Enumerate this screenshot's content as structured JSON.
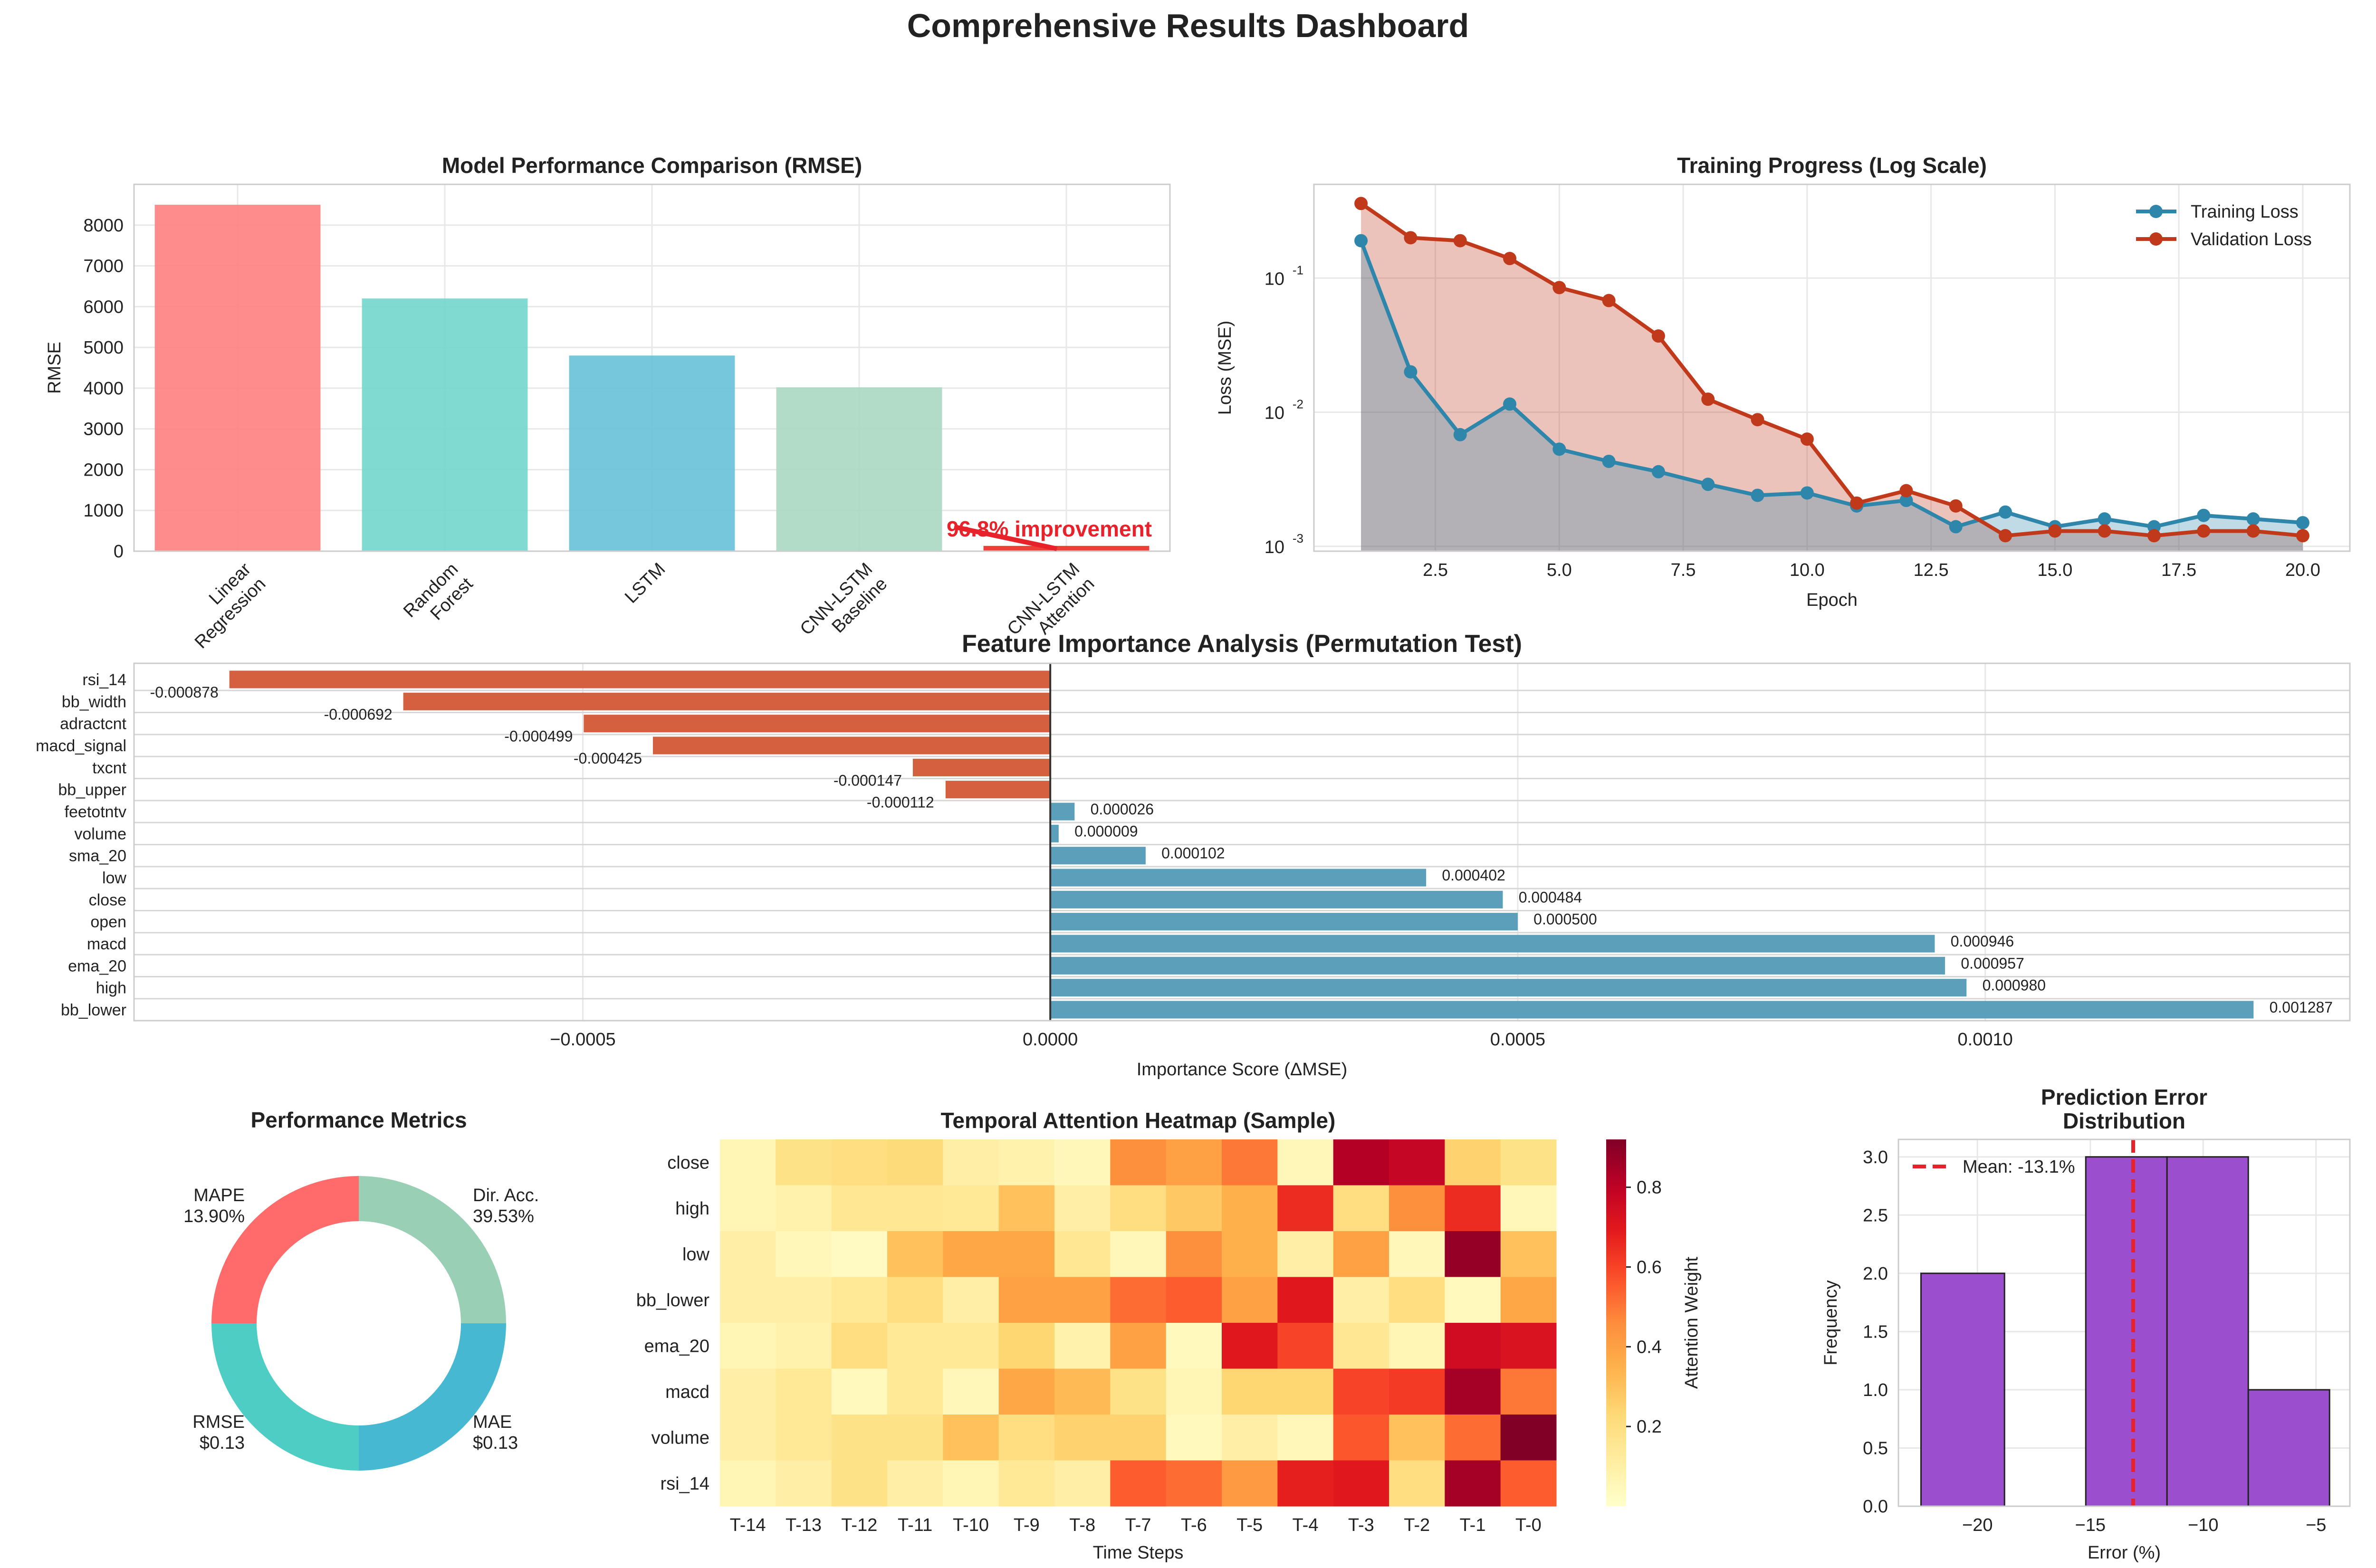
{
  "title": "Comprehensive Results Dashboard",
  "colors": {
    "neg_bar": "#d4603f",
    "pos_bar": "#5b9fba",
    "train": "#2e86ab",
    "val": "#c0391b",
    "hist": "#9b4fcf",
    "mean_line": "#e8222a",
    "grid": "#e8e8e8"
  },
  "chart_data": [
    {
      "id": "rmse",
      "type": "bar",
      "title": "Model Performance Comparison (RMSE)",
      "ylabel": "RMSE",
      "xlabel": "",
      "categories": [
        "Linear\nRegression",
        "Random\nForest",
        "LSTM",
        "CNN-LSTM\nBaseline",
        "CNN-LSTM\nAttention"
      ],
      "values": [
        8500,
        6200,
        4800,
        4020,
        130
      ],
      "bar_colors": [
        "#ff8080",
        "#72d6cc",
        "#67c0d8",
        "#aad8c2",
        "#ee2a22"
      ],
      "ylim": [
        0,
        9000
      ],
      "yticks": [
        0,
        1000,
        2000,
        3000,
        4000,
        5000,
        6000,
        7000,
        8000
      ],
      "annotation": "96.8% improvement",
      "grid": true
    },
    {
      "id": "training",
      "type": "line",
      "title": "Training Progress (Log Scale)",
      "xlabel": "Epoch",
      "ylabel": "Loss (MSE)",
      "yscale": "log",
      "x": [
        1,
        2,
        3,
        4,
        5,
        6,
        7,
        8,
        9,
        10,
        11,
        12,
        13,
        14,
        15,
        16,
        17,
        18,
        19,
        20
      ],
      "series": [
        {
          "name": "Training Loss",
          "values": [
            0.19,
            0.02,
            0.0068,
            0.0115,
            0.0053,
            0.0043,
            0.0036,
            0.0029,
            0.0024,
            0.0025,
            0.002,
            0.0022,
            0.0014,
            0.0018,
            0.0014,
            0.0016,
            0.0014,
            0.0017,
            0.0016,
            0.0015
          ]
        },
        {
          "name": "Validation Loss",
          "values": [
            0.36,
            0.2,
            0.19,
            0.14,
            0.085,
            0.068,
            0.037,
            0.0125,
            0.0088,
            0.0063,
            0.0021,
            0.0026,
            0.002,
            0.0012,
            0.0013,
            0.0013,
            0.0012,
            0.0013,
            0.0013,
            0.0012
          ]
        }
      ],
      "xlim": [
        0.05,
        20.95
      ],
      "ylim": [
        0.00092,
        0.5
      ],
      "xticks": [
        2.5,
        5.0,
        7.5,
        10.0,
        12.5,
        15.0,
        17.5,
        20.0
      ],
      "xtick_labels": [
        "2.5",
        "5.0",
        "7.5",
        "10.0",
        "12.5",
        "15.0",
        "17.5",
        "20.0"
      ],
      "ytick_labels": [
        "10",
        "10",
        "10"
      ],
      "ytick_exponents": [
        "-3",
        "-2",
        "-1"
      ],
      "legend": "top-right",
      "grid": true
    },
    {
      "id": "importance",
      "type": "bar",
      "orientation": "horizontal",
      "title": "Feature Importance Analysis (Permutation Test)",
      "xlabel": "Importance Score (ΔMSE)",
      "categories": [
        "rsi_14",
        "bb_width",
        "adractcnt",
        "macd_signal",
        "txcnt",
        "bb_upper",
        "feetotntv",
        "volume",
        "sma_20",
        "low",
        "close",
        "open",
        "macd",
        "ema_20",
        "high",
        "bb_lower"
      ],
      "values": [
        -0.000878,
        -0.000692,
        -0.000499,
        -0.000425,
        -0.000147,
        -0.000112,
        2.6e-05,
        9e-06,
        0.000102,
        0.000402,
        0.000484,
        0.0005,
        0.000946,
        0.000957,
        0.00098,
        0.001287
      ],
      "value_labels": [
        "-0.000878",
        "-0.000692",
        "-0.000499",
        "-0.000425",
        "-0.000147",
        "-0.000112",
        "0.000026",
        "0.000009",
        "0.000102",
        "0.000402",
        "0.000484",
        "0.000500",
        "0.000946",
        "0.000957",
        "0.000980",
        "0.001287"
      ],
      "xlim": [
        -0.00098,
        0.00139
      ],
      "xticks": [
        -0.0005,
        0,
        0.0005,
        0.001
      ],
      "xtick_labels": [
        "−0.0005",
        "0.0000",
        "0.0005",
        "0.0010"
      ],
      "grid": true
    },
    {
      "id": "metrics",
      "type": "pie",
      "donut": true,
      "title": "Performance Metrics",
      "slices": [
        {
          "name": "Dir. Acc.",
          "label": "39.53%",
          "value": 1,
          "color": "#99cfb5"
        },
        {
          "name": "MAE",
          "label": "$0.13",
          "value": 1,
          "color": "#47b8d2"
        },
        {
          "name": "RMSE",
          "label": "$0.13",
          "value": 1,
          "color": "#4ecdc4"
        },
        {
          "name": "MAPE",
          "label": "13.90%",
          "value": 1,
          "color": "#ff6b6b"
        }
      ]
    },
    {
      "id": "heatmap",
      "type": "heatmap",
      "title": "Temporal Attention Heatmap (Sample)",
      "xlabel": "Time Steps",
      "colorbar_label": "Attention Weight",
      "colorbar_ticks": [
        0.2,
        0.4,
        0.6,
        0.8
      ],
      "vmin": 0.0,
      "vmax": 0.92,
      "rows": [
        "close",
        "high",
        "low",
        "bb_lower",
        "ema_20",
        "macd",
        "volume",
        "rsi_14"
      ],
      "cols": [
        "T-14",
        "T-13",
        "T-12",
        "T-11",
        "T-10",
        "T-9",
        "T-8",
        "T-7",
        "T-6",
        "T-5",
        "T-4",
        "T-3",
        "T-2",
        "T-1",
        "T-0"
      ],
      "values": [
        [
          0.06,
          0.18,
          0.2,
          0.22,
          0.1,
          0.08,
          0.05,
          0.45,
          0.4,
          0.5,
          0.05,
          0.82,
          0.78,
          0.25,
          0.18
        ],
        [
          0.06,
          0.08,
          0.15,
          0.15,
          0.14,
          0.3,
          0.1,
          0.2,
          0.28,
          0.35,
          0.65,
          0.2,
          0.45,
          0.65,
          0.05
        ],
        [
          0.1,
          0.05,
          0.03,
          0.3,
          0.38,
          0.38,
          0.15,
          0.05,
          0.45,
          0.35,
          0.1,
          0.4,
          0.05,
          0.88,
          0.3
        ],
        [
          0.1,
          0.1,
          0.14,
          0.2,
          0.1,
          0.4,
          0.4,
          0.52,
          0.55,
          0.4,
          0.7,
          0.1,
          0.2,
          0.04,
          0.38
        ],
        [
          0.06,
          0.08,
          0.2,
          0.14,
          0.14,
          0.24,
          0.08,
          0.4,
          0.04,
          0.7,
          0.6,
          0.15,
          0.06,
          0.75,
          0.72
        ],
        [
          0.1,
          0.14,
          0.04,
          0.14,
          0.05,
          0.38,
          0.32,
          0.18,
          0.06,
          0.24,
          0.24,
          0.6,
          0.62,
          0.85,
          0.5
        ],
        [
          0.1,
          0.14,
          0.18,
          0.18,
          0.3,
          0.2,
          0.25,
          0.25,
          0.04,
          0.1,
          0.05,
          0.56,
          0.3,
          0.52,
          0.92
        ],
        [
          0.06,
          0.1,
          0.18,
          0.1,
          0.06,
          0.14,
          0.1,
          0.55,
          0.52,
          0.42,
          0.68,
          0.7,
          0.2,
          0.85,
          0.55
        ]
      ]
    },
    {
      "id": "error_hist",
      "type": "bar",
      "subtype": "histogram",
      "title": "Prediction Error",
      "title_line2": "Distribution",
      "xlabel": "Error (%)",
      "ylabel": "Frequency",
      "bins": [
        [
          -22.5,
          -18.8
        ],
        [
          -18.8,
          -15.2
        ],
        [
          -15.2,
          -11.6
        ],
        [
          -11.6,
          -8.0
        ],
        [
          -8.0,
          -4.4
        ]
      ],
      "values": [
        2,
        0,
        3,
        3,
        1
      ],
      "mean": -13.1,
      "mean_label": "Mean: -13.1%",
      "xlim": [
        -23.5,
        -3.5
      ],
      "ylim": [
        0,
        3.15
      ],
      "xticks": [
        -20,
        -15,
        -10,
        -5
      ],
      "xtick_labels": [
        "−20",
        "−15",
        "−10",
        "−5"
      ],
      "yticks": [
        0,
        0.5,
        1,
        1.5,
        2,
        2.5,
        3
      ],
      "ytick_labels": [
        "0.0",
        "0.5",
        "1.0",
        "1.5",
        "2.0",
        "2.5",
        "3.0"
      ],
      "legend": "top-left",
      "grid": true
    }
  ]
}
